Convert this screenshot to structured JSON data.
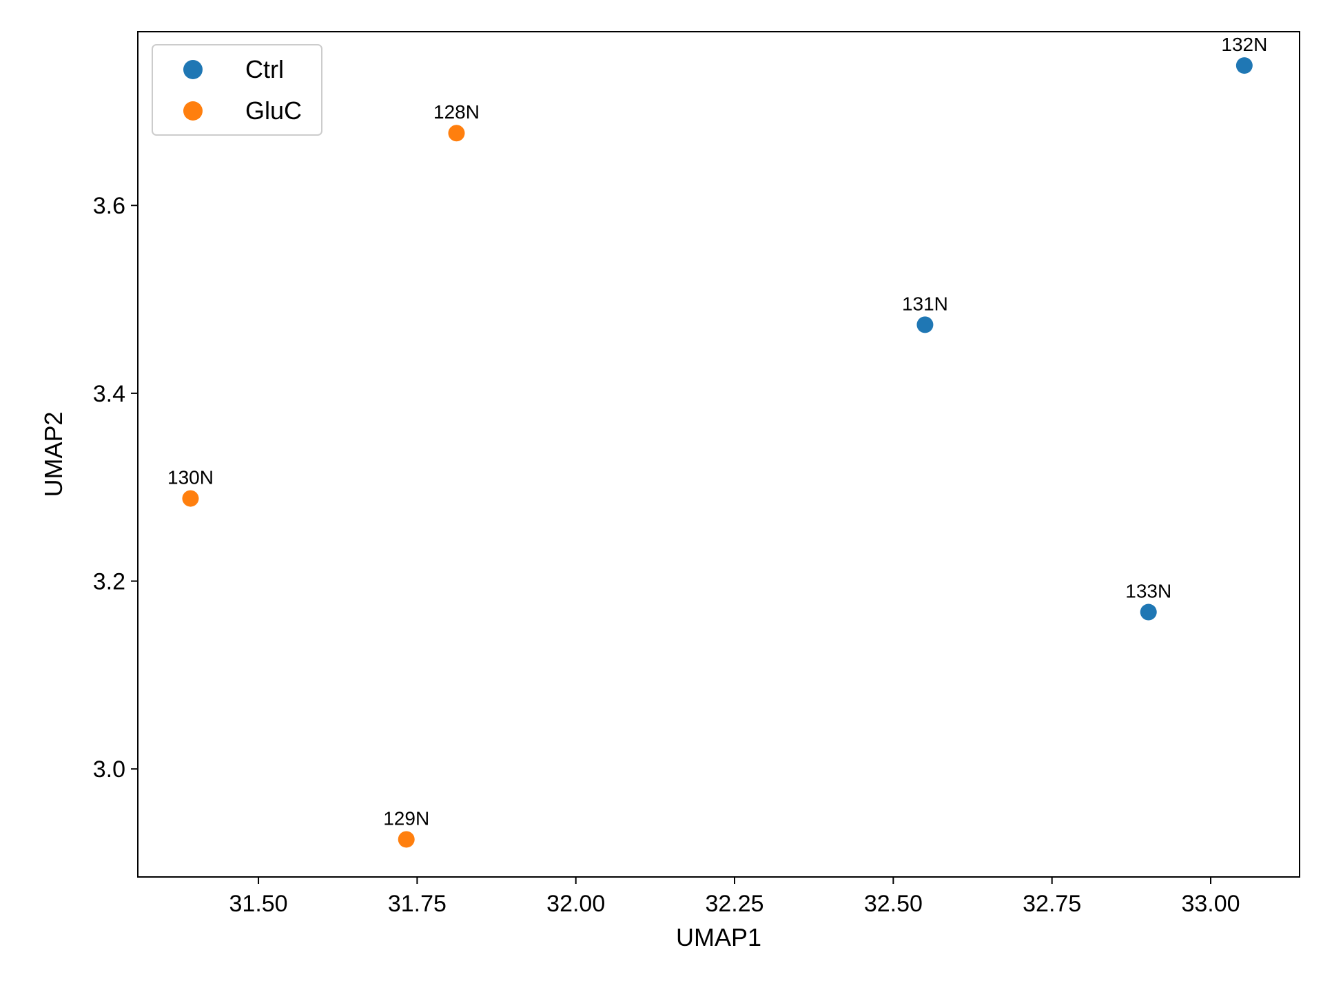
{
  "chart_data": {
    "type": "scatter",
    "title": "",
    "xlabel": "UMAP1",
    "ylabel": "UMAP2",
    "xlim": [
      31.31,
      33.14
    ],
    "ylim": [
      2.885,
      3.785
    ],
    "xticks": [
      31.5,
      31.75,
      32.0,
      32.25,
      32.5,
      32.75,
      33.0
    ],
    "xtick_labels": [
      "31.50",
      "31.75",
      "32.00",
      "32.25",
      "32.50",
      "32.75",
      "33.00"
    ],
    "yticks": [
      3.0,
      3.2,
      3.4,
      3.6
    ],
    "ytick_labels": [
      "3.0",
      "3.2",
      "3.4",
      "3.6"
    ],
    "grid": false,
    "legend": {
      "position": "upper-left"
    },
    "series": [
      {
        "name": "Ctrl",
        "color": "#1f77b4",
        "points": [
          {
            "x": 32.55,
            "y": 3.473,
            "label": "131N"
          },
          {
            "x": 33.053,
            "y": 3.749,
            "label": "132N"
          },
          {
            "x": 32.902,
            "y": 3.167,
            "label": "133N"
          }
        ]
      },
      {
        "name": "GluC",
        "color": "#ff7f0e",
        "points": [
          {
            "x": 31.812,
            "y": 3.677,
            "label": "128N"
          },
          {
            "x": 31.733,
            "y": 2.925,
            "label": "129N"
          },
          {
            "x": 31.393,
            "y": 3.288,
            "label": "130N"
          }
        ]
      }
    ]
  }
}
